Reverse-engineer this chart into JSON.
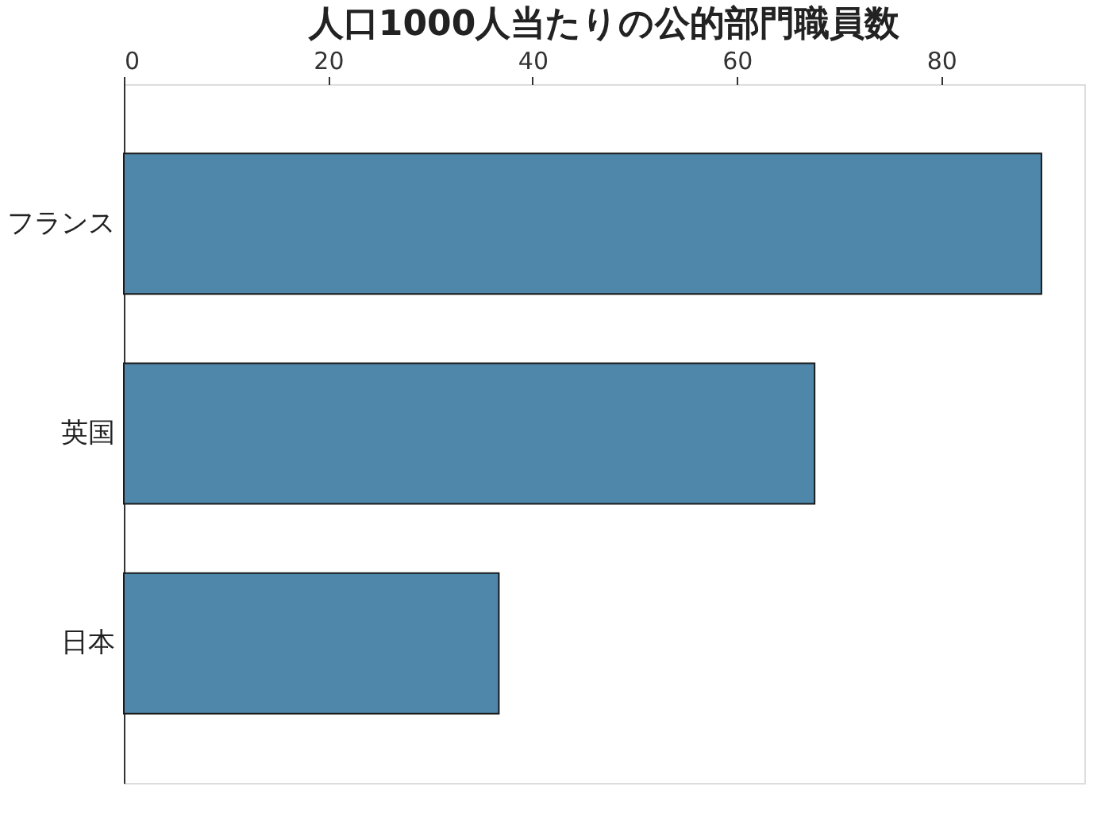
{
  "chart_data": {
    "type": "bar",
    "orientation": "horizontal",
    "title": "人口1000人当たりの公的部門職員数",
    "categories": [
      "フランス",
      "英国",
      "日本"
    ],
    "values": [
      89.8,
      67.6,
      36.7
    ],
    "color": "#4f87ab",
    "xlim": [
      0,
      94
    ],
    "xticks": [
      0,
      20,
      40,
      60,
      80
    ],
    "grid": false
  }
}
